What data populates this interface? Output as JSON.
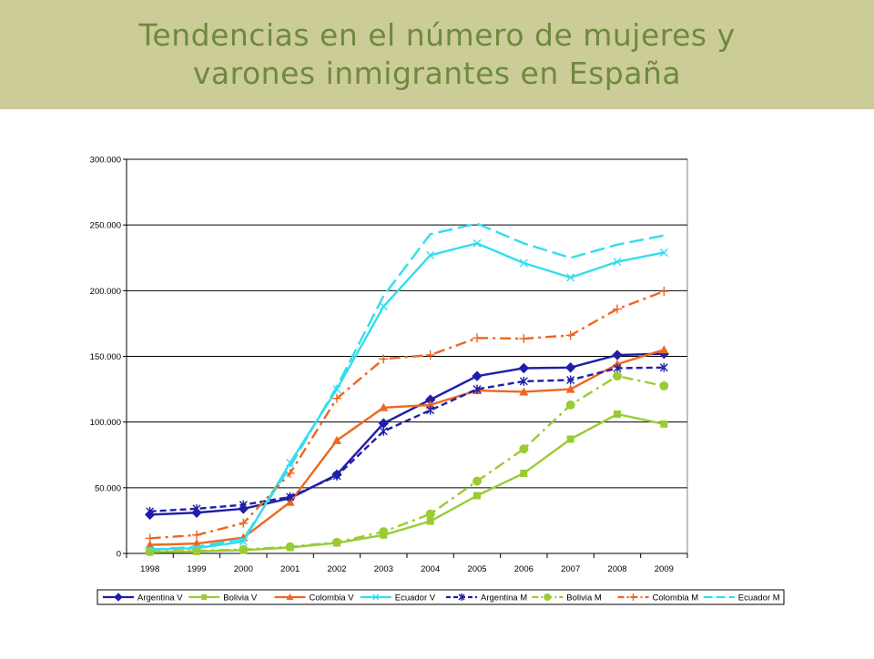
{
  "page": {
    "title_line1": "Tendencias en el número de mujeres y",
    "title_line2": "varones inmigrantes en España",
    "title_band_color": "#cccc99",
    "title_text_color": "#6e8a3c"
  },
  "chart_data": {
    "type": "line",
    "title": "",
    "xlabel": "",
    "ylabel": "",
    "categories": [
      "1998",
      "1999",
      "2000",
      "2001",
      "2002",
      "2003",
      "2004",
      "2005",
      "2006",
      "2007",
      "2008",
      "2009"
    ],
    "ylim": [
      0,
      300000
    ],
    "yticks": [
      0,
      50000,
      100000,
      150000,
      200000,
      250000,
      300000
    ],
    "ytick_labels": [
      "0",
      "50.000",
      "100.000",
      "150.000",
      "200.000",
      "250.000",
      "300.000"
    ],
    "grid": "horizontal",
    "legend_position": "bottom",
    "series": [
      {
        "name": "Argentina V",
        "color": "#1f1fa8",
        "dash": "solid",
        "marker": "diamond",
        "values": [
          29500,
          31000,
          34000,
          42000,
          60000,
          99000,
          117000,
          135000,
          141000,
          141500,
          151000,
          152000
        ]
      },
      {
        "name": "Bolivia V",
        "color": "#99cc33",
        "dash": "solid",
        "marker": "square",
        "values": [
          1000,
          1500,
          2500,
          4500,
          8000,
          14000,
          24500,
          44000,
          61000,
          87000,
          106000,
          98500
        ]
      },
      {
        "name": "Colombia V",
        "color": "#ee6622",
        "dash": "solid",
        "marker": "triangle",
        "values": [
          6500,
          7500,
          12000,
          39000,
          86000,
          111000,
          113000,
          124000,
          123000,
          125000,
          144000,
          155000
        ]
      },
      {
        "name": "Ecuador V",
        "color": "#33ddee",
        "dash": "solid",
        "marker": "x",
        "values": [
          3000,
          4000,
          9000,
          69000,
          125000,
          188000,
          227000,
          236000,
          221000,
          210000,
          222000,
          229000
        ]
      },
      {
        "name": "Argentina M",
        "color": "#1f1fa8",
        "dash": "dashed",
        "marker": "asterisk",
        "values": [
          32000,
          34000,
          37000,
          43000,
          59000,
          93000,
          109000,
          125000,
          131000,
          132000,
          141000,
          141500
        ]
      },
      {
        "name": "Bolivia M",
        "color": "#99cc33",
        "dash": "dashdot",
        "marker": "circle",
        "values": [
          1500,
          2000,
          3000,
          5000,
          8500,
          16500,
          30000,
          55000,
          79500,
          113000,
          135000,
          127500
        ]
      },
      {
        "name": "Colombia M",
        "color": "#ee6622",
        "dash": "dashdot",
        "marker": "plus",
        "values": [
          11500,
          14000,
          23000,
          61000,
          118000,
          148000,
          151000,
          164000,
          163500,
          166000,
          186000,
          199500
        ]
      },
      {
        "name": "Ecuador M",
        "color": "#33ddee",
        "dash": "longdash",
        "marker": "none",
        "values": [
          3000,
          5000,
          11000,
          66000,
          127000,
          196000,
          243000,
          251000,
          236000,
          225000,
          235000,
          242000
        ]
      }
    ]
  }
}
